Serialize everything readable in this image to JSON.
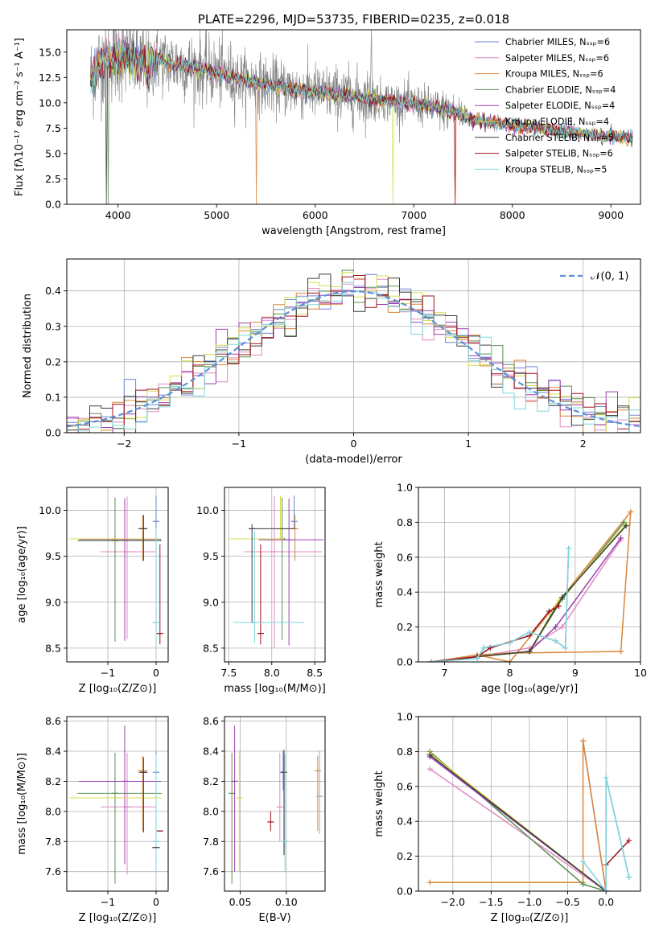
{
  "chart_data": [
    {
      "id": "spectrum",
      "type": "line",
      "title": "PLATE=2296, MJD=53735, FIBERID=0235, z=0.018",
      "xlabel": "wavelength [Angstrom, rest frame]",
      "ylabel": "Flux [fλ10⁻¹⁷ erg cm⁻² s⁻¹ A⁻¹]",
      "xlim": [
        3480,
        9300
      ],
      "ylim": [
        0,
        17.2
      ],
      "xticks": [
        4000,
        5000,
        6000,
        7000,
        8000,
        9000
      ],
      "yticks": [
        0.0,
        2.5,
        5.0,
        7.5,
        10.0,
        12.5,
        15.0
      ],
      "legend_position": "top-right",
      "series": [
        {
          "name": "Chabrier MILES, Nₛₛₚ=6",
          "color": "#6f86d6"
        },
        {
          "name": "Salpeter MILES, Nₛₛₚ=6",
          "color": "#e08ac2"
        },
        {
          "name": "Kroupa MILES, Nₛₛₚ=6",
          "color": "#d9863a"
        },
        {
          "name": "Chabrier ELODIE, Nₛₛₚ=4",
          "color": "#5b8f4e"
        },
        {
          "name": "Salpeter ELODIE, Nₛₛₚ=4",
          "color": "#9a3fb0"
        },
        {
          "name": "Kroupa ELODIE, Nₛₛₚ=4",
          "color": "#d6dc4a"
        },
        {
          "name": "Chabrier STELIB, Nₛₛₚ=5",
          "color": "#3c3c3c"
        },
        {
          "name": "Salpeter STELIB, Nₛₛₚ=6",
          "color": "#a0101a"
        },
        {
          "name": "Kroupa STELIB, Nₛₛₚ=5",
          "color": "#7fd6dc"
        }
      ],
      "data_color": "#808080",
      "continuum": {
        "x": [
          3700,
          3800,
          3900,
          4000,
          4100,
          4200,
          4300,
          4400,
          4500,
          4700,
          5000,
          5300,
          5600,
          6000,
          6500,
          7000,
          7400,
          7600,
          8000,
          8400,
          8800,
          9200
        ],
        "y": [
          12.0,
          13.8,
          14.3,
          14.6,
          14.4,
          14.2,
          13.3,
          14.3,
          14.0,
          13.6,
          13.0,
          12.2,
          11.6,
          11.1,
          10.5,
          9.9,
          9.1,
          8.3,
          7.8,
          7.3,
          6.9,
          6.5
        ]
      }
    },
    {
      "id": "residuals",
      "type": "step",
      "xlabel": "(data-model)/error",
      "ylabel": "Normed distribution",
      "xlim": [
        -2.5,
        2.5
      ],
      "ylim": [
        0,
        0.49
      ],
      "xticks": [
        -2,
        -1,
        0,
        1,
        2
      ],
      "yticks": [
        0.0,
        0.1,
        0.2,
        0.3,
        0.4
      ],
      "grid": true,
      "legend_position": "top-right",
      "reference": {
        "name": "𝒩(0, 1)",
        "color": "#5b8fd9",
        "style": "dashed"
      },
      "bin_width": 0.1
    },
    {
      "id": "z-age",
      "type": "errorbar",
      "xlabel": "Z [log₁₀(Z/Z⊙)]",
      "ylabel": "age  [log₁₀(age/yr)]",
      "xlim": [
        -1.85,
        0.25
      ],
      "ylim": [
        8.35,
        10.25
      ],
      "xticks": [
        -1,
        0
      ],
      "yticks": [
        8.5,
        9.0,
        9.5,
        10.0
      ],
      "grid": true,
      "points": [
        {
          "x": 0.0,
          "y": 9.88,
          "ylo": 0.08,
          "yhi": 0.28,
          "xlo": 0.0,
          "xhi": 0.0,
          "color": "#6f86d6"
        },
        {
          "x": -0.6,
          "y": 9.55,
          "ylo": 0.95,
          "yhi": 0.6,
          "xlo": 0.55,
          "xhi": 0.6,
          "color": "#e08ac2"
        },
        {
          "x": -0.28,
          "y": 9.8,
          "ylo": 0.35,
          "yhi": 0.15,
          "xlo": 0.1,
          "xhi": 0.1,
          "color": "#d9863a"
        },
        {
          "x": -0.85,
          "y": 9.67,
          "ylo": 1.1,
          "yhi": 0.47,
          "xlo": 0.78,
          "xhi": 0.97,
          "color": "#5b8f4e"
        },
        {
          "x": -0.65,
          "y": 9.68,
          "ylo": 1.1,
          "yhi": 0.45,
          "xlo": 0.95,
          "xhi": 0.75,
          "color": "#9a3fb0"
        },
        {
          "x": -0.85,
          "y": 9.69,
          "ylo": 0.0,
          "yhi": 0.0,
          "xlo": 0.95,
          "xhi": 0.95,
          "color": "#d6dc4a"
        },
        {
          "x": -0.26,
          "y": 9.8,
          "ylo": 0.35,
          "yhi": 0.15,
          "xlo": 0.1,
          "xhi": 0.08,
          "color": "#3c3c3c"
        },
        {
          "x": 0.08,
          "y": 8.66,
          "ylo": 0.12,
          "yhi": 0.97,
          "xlo": 0.05,
          "xhi": 0.05,
          "color": "#a0101a"
        },
        {
          "x": 0.0,
          "y": 8.78,
          "ylo": 0.22,
          "yhi": 1.0,
          "xlo": 0.08,
          "xhi": 0.08,
          "color": "#7fd6dc"
        }
      ]
    },
    {
      "id": "mass-age",
      "type": "errorbar",
      "xlabel": "mass [log₁₀(M/M⊙)]",
      "ylabel": "",
      "xlim": [
        7.45,
        8.62
      ],
      "ylim": [
        8.35,
        10.25
      ],
      "xticks": [
        7.5,
        8.0,
        8.5
      ],
      "yticks": [
        8.5,
        9.0,
        9.5,
        10.0
      ],
      "grid": true,
      "points": [
        {
          "x": 8.26,
          "y": 9.88,
          "ylo": 0.08,
          "yhi": 0.28,
          "xlo": 0.0,
          "xhi": 0.0,
          "color": "#6f86d6"
        },
        {
          "x": 8.03,
          "y": 9.55,
          "ylo": 1.05,
          "yhi": 0.6,
          "xlo": 0.35,
          "xhi": 0.55,
          "color": "#e08ac2"
        },
        {
          "x": 8.27,
          "y": 9.8,
          "ylo": 0.35,
          "yhi": 0.15,
          "xlo": 0.22,
          "xhi": 0.0,
          "color": "#d9863a"
        },
        {
          "x": 8.12,
          "y": 9.69,
          "ylo": 1.1,
          "yhi": 0.45,
          "xlo": 0.6,
          "xhi": 0.0,
          "color": "#5b8f4e"
        },
        {
          "x": 8.2,
          "y": 9.68,
          "ylo": 1.15,
          "yhi": 0.45,
          "xlo": 0.35,
          "xhi": 0.4,
          "color": "#9a3fb0"
        },
        {
          "x": 8.1,
          "y": 9.69,
          "ylo": 0.0,
          "yhi": 0.47,
          "xlo": 0.6,
          "xhi": 0.0,
          "color": "#d6dc4a"
        },
        {
          "x": 7.77,
          "y": 9.8,
          "ylo": 1.03,
          "yhi": 0.05,
          "xlo": 0.0,
          "xhi": 0.5,
          "color": "#3c3c3c"
        },
        {
          "x": 7.87,
          "y": 8.66,
          "ylo": 0.12,
          "yhi": 0.97,
          "xlo": 0.0,
          "xhi": 0.0,
          "color": "#a0101a"
        },
        {
          "x": 7.8,
          "y": 8.78,
          "ylo": 0.22,
          "yhi": 1.0,
          "xlo": 0.25,
          "xhi": 0.58,
          "color": "#7fd6dc"
        }
      ]
    },
    {
      "id": "age-weight",
      "type": "line",
      "xlabel": "age  [log₁₀(age/yr)]",
      "ylabel": "mass weight",
      "xlim": [
        6.6,
        10.0
      ],
      "ylim": [
        0.0,
        1.0
      ],
      "xticks": [
        7,
        8,
        9,
        10
      ],
      "yticks": [
        0.0,
        0.2,
        0.4,
        0.6,
        0.8,
        1.0
      ],
      "grid": true,
      "series": [
        {
          "color": "#6f86d6",
          "x": [
            6.8,
            7.5,
            7.6,
            8.0,
            8.3,
            8.7,
            8.85,
            8.9
          ],
          "y": [
            0.0,
            0.02,
            0.08,
            0.11,
            0.17,
            0.12,
            0.08,
            0.65
          ]
        },
        {
          "color": "#e08ac2",
          "x": [
            6.8,
            7.5,
            8.3,
            8.8,
            9.7
          ],
          "y": [
            0.0,
            0.03,
            0.08,
            0.2,
            0.7
          ]
        },
        {
          "color": "#d9863a",
          "x": [
            6.8,
            7.5,
            8.0,
            9.7,
            9.85,
            8.0,
            7.5
          ],
          "y": [
            0.0,
            0.04,
            0.05,
            0.06,
            0.86,
            0.0,
            0.04
          ]
        },
        {
          "color": "#5b8f4e",
          "x": [
            6.8,
            7.5,
            8.3,
            8.8,
            9.75
          ],
          "y": [
            0.0,
            0.03,
            0.06,
            0.36,
            0.8
          ]
        },
        {
          "color": "#9a3fb0",
          "x": [
            6.8,
            7.5,
            8.3,
            8.7,
            9.7
          ],
          "y": [
            0.0,
            0.03,
            0.06,
            0.2,
            0.71
          ]
        },
        {
          "color": "#d6dc4a",
          "x": [
            6.8,
            7.5,
            8.3,
            8.75,
            9.78
          ],
          "y": [
            0.0,
            0.03,
            0.06,
            0.35,
            0.79
          ]
        },
        {
          "color": "#3c3c3c",
          "x": [
            6.8,
            7.5,
            8.3,
            8.8,
            9.78
          ],
          "y": [
            0.0,
            0.03,
            0.06,
            0.37,
            0.78
          ]
        },
        {
          "color": "#a0101a",
          "x": [
            6.8,
            7.5,
            7.7,
            8.3,
            8.6,
            8.75
          ],
          "y": [
            0.0,
            0.03,
            0.08,
            0.15,
            0.29,
            0.32
          ]
        },
        {
          "color": "#7fd6dc",
          "x": [
            6.8,
            7.5,
            7.6,
            8.0,
            8.3,
            8.7,
            8.85,
            8.9
          ],
          "y": [
            0.0,
            0.02,
            0.08,
            0.11,
            0.17,
            0.12,
            0.08,
            0.65
          ]
        }
      ]
    },
    {
      "id": "z-mass",
      "type": "errorbar",
      "xlabel": "Z [log₁₀(Z/Z⊙)]",
      "ylabel": "mass [log₁₀(M/M⊙)]",
      "xlim": [
        -1.85,
        0.25
      ],
      "ylim": [
        7.47,
        8.63
      ],
      "xticks": [
        -1,
        0
      ],
      "yticks": [
        7.6,
        7.8,
        8.0,
        8.2,
        8.4,
        8.6
      ],
      "grid": true,
      "points": [
        {
          "x": 0.0,
          "y": 8.26,
          "ylo": 0.12,
          "yhi": 0.14,
          "xlo": 0.0,
          "xhi": 0.0,
          "color": "#6f86d6"
        },
        {
          "x": -0.6,
          "y": 8.03,
          "ylo": 0.45,
          "yhi": 0.36,
          "xlo": 0.55,
          "xhi": 0.6,
          "color": "#e08ac2"
        },
        {
          "x": -0.28,
          "y": 8.27,
          "ylo": 0.4,
          "yhi": 0.1,
          "xlo": 0.1,
          "xhi": 0.1,
          "color": "#d9863a"
        },
        {
          "x": -0.85,
          "y": 8.12,
          "ylo": 0.6,
          "yhi": 0.27,
          "xlo": 0.78,
          "xhi": 0.97,
          "color": "#5b8f4e"
        },
        {
          "x": -0.65,
          "y": 8.2,
          "ylo": 0.55,
          "yhi": 0.37,
          "xlo": 0.95,
          "xhi": 0.75,
          "color": "#9a3fb0"
        },
        {
          "x": -0.85,
          "y": 8.09,
          "ylo": 0.0,
          "yhi": 0.0,
          "xlo": 0.95,
          "xhi": 0.95,
          "color": "#d6dc4a"
        },
        {
          "x": -0.26,
          "y": 8.26,
          "ylo": 0.4,
          "yhi": 0.1,
          "xlo": 0.1,
          "xhi": 0.08,
          "color": "#3c3c3c"
        },
        {
          "x": 0.08,
          "y": 7.87,
          "ylo": 0.0,
          "yhi": 0.0,
          "xlo": 0.05,
          "xhi": 0.05,
          "color": "#a0101a"
        },
        {
          "x": 0.0,
          "y": 7.8,
          "ylo": 0.2,
          "yhi": 0.58,
          "xlo": 0.08,
          "xhi": 0.08,
          "color": "#7fd6dc"
        },
        {
          "x": 0.0,
          "y": 7.76,
          "ylo": 0.0,
          "yhi": 0.0,
          "xlo": 0.08,
          "xhi": 0.08,
          "color": "#3c3c3c"
        }
      ]
    },
    {
      "id": "ebv-mass",
      "type": "errorbar",
      "xlabel": "E(B-V)",
      "ylabel": "",
      "xlim": [
        0.033,
        0.142
      ],
      "ylim": [
        7.47,
        8.63
      ],
      "xticks": [
        0.05,
        0.1
      ],
      "xtick_labels": [
        "0.05",
        "0.10"
      ],
      "yticks": [
        7.6,
        7.8,
        8.0,
        8.2,
        8.4,
        8.6
      ],
      "grid": true,
      "points": [
        {
          "x": 0.0965,
          "y": 8.26,
          "ylo": 0.12,
          "yhi": 0.14,
          "color": "#6f86d6"
        },
        {
          "x": 0.093,
          "y": 8.03,
          "ylo": 0.23,
          "yhi": 0.36,
          "color": "#e08ac2"
        },
        {
          "x": 0.134,
          "y": 8.27,
          "ylo": 0.4,
          "yhi": 0.1,
          "color": "#d9863a"
        },
        {
          "x": 0.041,
          "y": 8.12,
          "ylo": 0.6,
          "yhi": 0.27,
          "color": "#5b8f4e"
        },
        {
          "x": 0.044,
          "y": 8.2,
          "ylo": 0.6,
          "yhi": 0.37,
          "color": "#9a3fb0"
        },
        {
          "x": 0.049,
          "y": 8.09,
          "ylo": 0.49,
          "yhi": 0.31,
          "color": "#d6dc4a"
        },
        {
          "x": 0.0975,
          "y": 8.26,
          "ylo": 0.55,
          "yhi": 0.15,
          "color": "#3c3c3c"
        },
        {
          "x": 0.083,
          "y": 7.93,
          "ylo": 0.06,
          "yhi": 0.07,
          "color": "#a0101a"
        },
        {
          "x": 0.0985,
          "y": 7.8,
          "ylo": 0.2,
          "yhi": 0.58,
          "color": "#7fd6dc"
        },
        {
          "x": 0.136,
          "y": 8.1,
          "ylo": 0.25,
          "yhi": 0.3,
          "color": "#9aa8b8"
        }
      ]
    },
    {
      "id": "z-weight",
      "type": "line",
      "xlabel": "Z [log₁₀(Z/Z⊙)]",
      "ylabel": "mass weight",
      "xlim": [
        -2.45,
        0.45
      ],
      "ylim": [
        0.0,
        1.0
      ],
      "xticks": [
        -2.0,
        -1.5,
        -1.0,
        -0.5,
        0.0
      ],
      "xtick_labels": [
        "−2.0",
        "−1.5",
        "−1.0",
        "−0.5",
        "0.0"
      ],
      "yticks": [
        0.0,
        0.2,
        0.4,
        0.6,
        0.8,
        1.0
      ],
      "grid": true,
      "series": [
        {
          "color": "#6f86d6",
          "x": [
            -0.3,
            0.0,
            0.0,
            0.3
          ],
          "y": [
            0.86,
            0.0,
            0.65,
            0.08
          ]
        },
        {
          "color": "#e08ac2",
          "x": [
            -2.3,
            0.0
          ],
          "y": [
            0.7,
            0.0
          ]
        },
        {
          "color": "#d9863a",
          "x": [
            -2.3,
            -0.3,
            -0.3,
            0.0
          ],
          "y": [
            0.05,
            0.05,
            0.86,
            0.0
          ]
        },
        {
          "color": "#5b8f4e",
          "x": [
            -2.3,
            -0.3,
            0.0
          ],
          "y": [
            0.8,
            0.04,
            0.0
          ]
        },
        {
          "color": "#9a3fb0",
          "x": [
            -2.3,
            0.0
          ],
          "y": [
            0.77,
            0.0
          ]
        },
        {
          "color": "#d6dc4a",
          "x": [
            -2.3,
            0.0
          ],
          "y": [
            0.79,
            0.0
          ]
        },
        {
          "color": "#3c3c3c",
          "x": [
            -2.3,
            0.0
          ],
          "y": [
            0.78,
            0.0
          ]
        },
        {
          "color": "#a0101a",
          "x": [
            0.0,
            0.0,
            0.3
          ],
          "y": [
            0.0,
            0.15,
            0.29
          ]
        },
        {
          "color": "#7fd6dc",
          "x": [
            -0.3,
            0.0,
            0.0,
            0.3
          ],
          "y": [
            0.17,
            0.0,
            0.65,
            0.08
          ]
        }
      ]
    }
  ]
}
